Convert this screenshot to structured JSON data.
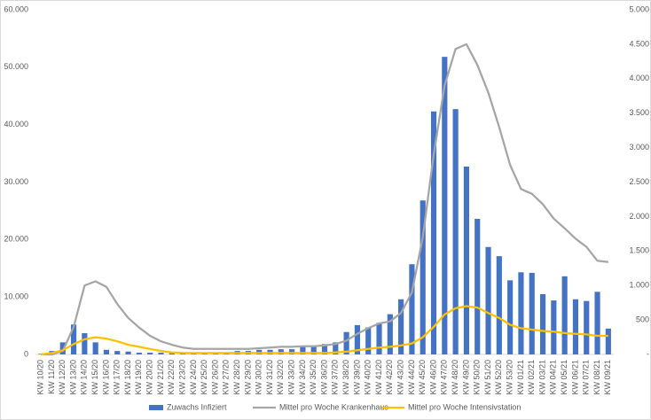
{
  "chart_data": {
    "type": "bar-line",
    "categories": [
      "KW 10/20",
      "KW 11/20",
      "KW 12/20",
      "KW 13/20",
      "KW 14/20",
      "KW 15/20",
      "KW 16/20",
      "KW 17/20",
      "KW 18/20",
      "KW 19/20",
      "KW 20/20",
      "KW 21/20",
      "KW 22/20",
      "KW 23/20",
      "KW 24/20",
      "KW 25/20",
      "KW 26/20",
      "KW 27/20",
      "KW 28/20",
      "KW 29/20",
      "KW 30/20",
      "KW 31/20",
      "KW 32/20",
      "KW 33/20",
      "KW 34/20",
      "KW 35/20",
      "KW 36/20",
      "KW 37/20",
      "KW 38/20",
      "KW 39/20",
      "KW 40/20",
      "KW 41/20",
      "KW 42/20",
      "KW 43/20",
      "KW 44/20",
      "KW 45/20",
      "KW 46/20",
      "KW 47/20",
      "KW 48/20",
      "KW 49/20",
      "KW 50/20",
      "KW 51/20",
      "KW 52/20",
      "KW 53/20",
      "KW 01/21",
      "KW 02/21",
      "KW 03/21",
      "KW 04/21",
      "KW 05/21",
      "KW 06/21",
      "KW 07/21",
      "KW 08/21",
      "KW 09/21"
    ],
    "series": [
      {
        "name": "Zuwachs Infiziert",
        "type": "bar",
        "color": "#4472c4",
        "values": [
          100,
          600,
          2100,
          5200,
          3700,
          2100,
          800,
          600,
          500,
          300,
          300,
          300,
          200,
          200,
          200,
          200,
          200,
          300,
          600,
          600,
          800,
          800,
          900,
          900,
          1300,
          1500,
          1800,
          2100,
          3900,
          5100,
          4700,
          5500,
          7000,
          9600,
          15700,
          26800,
          42300,
          51800,
          42700,
          32700,
          23600,
          18700,
          17100,
          12900,
          14300,
          14200,
          10500,
          9400,
          13600,
          9600,
          9300,
          10900,
          4500
        ]
      },
      {
        "name": "Mittel pro Woche Krankenhaus",
        "type": "line",
        "axis": "y2",
        "color": "#a5a5a5",
        "values": [
          0,
          0,
          50,
          400,
          1000,
          1060,
          980,
          730,
          530,
          390,
          270,
          190,
          140,
          100,
          80,
          80,
          80,
          80,
          80,
          80,
          90,
          100,
          110,
          110,
          120,
          120,
          130,
          150,
          200,
          300,
          380,
          450,
          480,
          600,
          900,
          1700,
          2900,
          3900,
          4430,
          4500,
          4200,
          3800,
          3300,
          2750,
          2400,
          2330,
          2180,
          1970,
          1830,
          1680,
          1560,
          1360,
          1340
        ]
      },
      {
        "name": "Mittel pro Woche Intensivstation",
        "type": "line",
        "axis": "y2",
        "color": "#ffc000",
        "values": [
          0,
          20,
          60,
          150,
          220,
          250,
          230,
          190,
          140,
          110,
          80,
          50,
          30,
          20,
          20,
          20,
          20,
          20,
          20,
          20,
          20,
          20,
          20,
          20,
          20,
          20,
          20,
          30,
          40,
          60,
          80,
          100,
          110,
          130,
          160,
          250,
          400,
          580,
          670,
          700,
          680,
          600,
          530,
          430,
          380,
          360,
          340,
          330,
          310,
          300,
          290,
          270,
          270
        ]
      }
    ],
    "ylim": [
      0,
      60000
    ],
    "yticks": [
      {
        "value": 0,
        "label": "0"
      },
      {
        "value": 10000,
        "label": "10.000"
      },
      {
        "value": 20000,
        "label": "20.000"
      },
      {
        "value": 30000,
        "label": "30.000"
      },
      {
        "value": 40000,
        "label": "40.000"
      },
      {
        "value": 50000,
        "label": "50.000"
      },
      {
        "value": 60000,
        "label": "60.000"
      }
    ],
    "y2lim": [
      0,
      5000
    ],
    "y2ticks": [
      {
        "value": 0,
        "label": "-"
      },
      {
        "value": 500,
        "label": "500"
      },
      {
        "value": 1000,
        "label": "1.000"
      },
      {
        "value": 1500,
        "label": "1.500"
      },
      {
        "value": 2000,
        "label": "2.000"
      },
      {
        "value": 2500,
        "label": "2.500"
      },
      {
        "value": 3000,
        "label": "3.000"
      },
      {
        "value": 3500,
        "label": "3.500"
      },
      {
        "value": 4000,
        "label": "4.000"
      },
      {
        "value": 4500,
        "label": "4.500"
      },
      {
        "value": 5000,
        "label": "5.000"
      }
    ],
    "grid": false,
    "legend": "bottom"
  }
}
